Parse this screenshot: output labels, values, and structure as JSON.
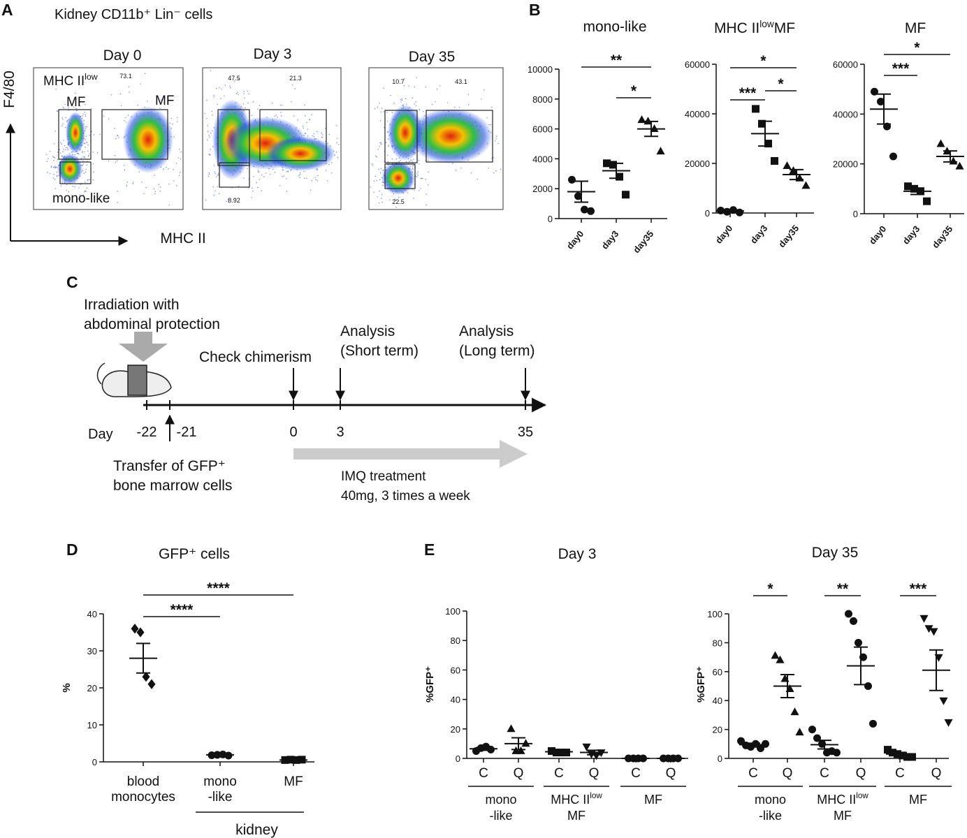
{
  "panel_labels": [
    "A",
    "B",
    "C",
    "D",
    "E"
  ],
  "panel_a": {
    "title": "Kidney CD11b⁺ Lin⁻ cells",
    "y_axis": "F4/80",
    "x_axis": "MHC II",
    "plots": [
      {
        "title": "Day 0",
        "gates": [
          "73.1"
        ]
      },
      {
        "title": "Day 3",
        "gates": [
          "47.5",
          "21.3",
          "8.92"
        ]
      },
      {
        "title": "Day 35",
        "gates": [
          "10.7",
          "43.1",
          "22.5"
        ]
      }
    ],
    "gate_names": {
      "mhc_low": {
        "text": "MHC II",
        "sup": "low"
      },
      "mhc_low_tail": "MF",
      "mf": "MF",
      "mono": "mono-like"
    }
  },
  "panel_c": {
    "irradiation": [
      "Irradiation with",
      "abdominal protection"
    ],
    "chimerism": "Check chimerism",
    "short": [
      "Analysis",
      "(Short term)"
    ],
    "long": [
      "Analysis",
      "(Long term)"
    ],
    "day": "Day",
    "days": [
      "-22",
      "-21",
      "0",
      "3",
      "35"
    ],
    "transfer": [
      "Transfer of GFP⁺",
      "bone marrow cells"
    ],
    "treatment": [
      "IMQ treatment",
      "40mg, 3 times a week"
    ]
  },
  "chart_data": [
    {
      "type": "dot",
      "title": "mono-like",
      "categories": [
        "day0",
        "day3",
        "day35"
      ],
      "markers": [
        "circle",
        "square",
        "triangle"
      ],
      "values": [
        [
          2600,
          1500,
          600,
          500
        ],
        [
          3700,
          3600,
          2800,
          1600
        ],
        [
          6600,
          6500,
          6000,
          4500
        ]
      ],
      "means": [
        1800,
        3200,
        6000
      ],
      "errors": [
        700,
        500,
        500
      ],
      "ylim": [
        0,
        10000
      ],
      "yticks": [
        0,
        2000,
        4000,
        6000,
        8000,
        10000
      ],
      "significance": [
        {
          "from": 0,
          "to": 2,
          "label": "**"
        },
        {
          "from": 1,
          "to": 2,
          "label": "*"
        }
      ]
    },
    {
      "type": "dot",
      "title": {
        "text": "MHC II",
        "sup": "low",
        "tail": "MF"
      },
      "categories": [
        "day0",
        "day3",
        "day35"
      ],
      "markers": [
        "circle",
        "square",
        "triangle"
      ],
      "values": [
        [
          1000,
          500,
          1200,
          200
        ],
        [
          42000,
          36000,
          28000,
          21000
        ],
        [
          19000,
          17000,
          14000,
          11000
        ]
      ],
      "means": [
        800,
        32000,
        15500
      ],
      "errors": [
        300,
        5000,
        2000
      ],
      "ylim": [
        0,
        60000
      ],
      "yticks": [
        0,
        20000,
        40000,
        60000
      ],
      "significance": [
        {
          "from": 0,
          "to": 2,
          "label": "*"
        },
        {
          "from": 0,
          "to": 1,
          "label": "***"
        },
        {
          "from": 1,
          "to": 2,
          "label": "*"
        }
      ]
    },
    {
      "type": "dot",
      "title": "MF",
      "categories": [
        "day0",
        "day3",
        "day35"
      ],
      "markers": [
        "circle",
        "square",
        "triangle"
      ],
      "values": [
        [
          49000,
          45000,
          35000,
          23000
        ],
        [
          11000,
          10000,
          9000,
          5000
        ],
        [
          28000,
          25000,
          21000,
          19000
        ]
      ],
      "means": [
        42000,
        9000,
        23000
      ],
      "errors": [
        6000,
        1300,
        2200
      ],
      "ylim": [
        0,
        60000
      ],
      "yticks": [
        0,
        20000,
        40000,
        60000
      ],
      "significance": [
        {
          "from": 0,
          "to": 1,
          "label": "***"
        },
        {
          "from": 0,
          "to": 2,
          "label": "*"
        }
      ]
    },
    {
      "type": "dot",
      "title": "GFP⁺ cells",
      "ylabel": "%",
      "categories": [
        [
          "blood",
          "monocytes"
        ],
        [
          "mono",
          "-like"
        ],
        [
          "MF"
        ]
      ],
      "markers": [
        "diamond",
        "circle",
        "square"
      ],
      "values": [
        [
          36,
          35,
          23,
          21
        ],
        [
          1.8,
          1.9,
          2,
          1.7
        ],
        [
          0.5,
          0.6,
          0.5,
          0.6
        ]
      ],
      "means": [
        28,
        1.9,
        0.5
      ],
      "errors": [
        4,
        0.1,
        0.1
      ],
      "ylim": [
        0,
        40
      ],
      "yticks": [
        0,
        10,
        20,
        30,
        40
      ],
      "group": {
        "label": "kidney",
        "from": 1,
        "to": 2
      },
      "significance": [
        {
          "from": 0,
          "to": 2,
          "label": "****"
        },
        {
          "from": 0,
          "to": 1,
          "label": "****"
        }
      ]
    },
    {
      "type": "dot",
      "title": "Day 3",
      "ylabel": "%GFP⁺",
      "categories": [
        "C",
        "Q",
        "C",
        "Q",
        "C",
        "Q"
      ],
      "markers": [
        "circle",
        "triangle",
        "square",
        "triangle-down",
        "circle",
        "circle"
      ],
      "values": [
        [
          5,
          7,
          8,
          6
        ],
        [
          20,
          5,
          5,
          10
        ],
        [
          5,
          4,
          4,
          4
        ],
        [
          8,
          3,
          2,
          4
        ],
        [
          0,
          0,
          0,
          0
        ],
        [
          0,
          0,
          0,
          0
        ]
      ],
      "means": [
        6.5,
        10,
        4.5,
        4,
        0,
        0
      ],
      "errors": [
        1,
        4,
        0.5,
        1.5,
        0,
        0
      ],
      "ylim": [
        0,
        100
      ],
      "yticks": [
        0,
        20,
        40,
        60,
        80,
        100
      ],
      "groups": [
        {
          "label": [
            "mono",
            "-like"
          ],
          "from": 0,
          "to": 1
        },
        {
          "label": [
            {
              "text": "MHC II",
              "sup": "low"
            },
            "MF"
          ],
          "from": 2,
          "to": 3
        },
        {
          "label": [
            "MF"
          ],
          "from": 4,
          "to": 5
        }
      ],
      "significance": []
    },
    {
      "type": "dot",
      "title": "Day 35",
      "ylabel": "%GFP⁺",
      "categories": [
        "C",
        "Q",
        "C",
        "Q",
        "C",
        "Q"
      ],
      "markers": [
        "circle",
        "triangle",
        "circle",
        "circle",
        "square",
        "triangle-down"
      ],
      "values": [
        [
          12,
          9,
          8,
          10,
          7,
          10
        ],
        [
          71,
          68,
          55,
          48,
          32,
          18
        ],
        [
          20,
          14,
          10,
          4,
          5,
          4
        ],
        [
          100,
          95,
          80,
          70,
          50,
          24
        ],
        [
          6,
          4,
          3,
          2,
          1,
          1
        ],
        [
          97,
          90,
          88,
          70,
          40,
          25
        ]
      ],
      "means": [
        9.5,
        50,
        9.5,
        64,
        3,
        61
      ],
      "errors": [
        1,
        8,
        3,
        13,
        1,
        14
      ],
      "ylim": [
        0,
        100
      ],
      "yticks": [
        0,
        20,
        40,
        60,
        80,
        100
      ],
      "groups": [
        {
          "label": [
            "mono",
            "-like"
          ],
          "from": 0,
          "to": 1
        },
        {
          "label": [
            {
              "text": "MHC II",
              "sup": "low"
            },
            "MF"
          ],
          "from": 2,
          "to": 3
        },
        {
          "label": [
            "MF"
          ],
          "from": 4,
          "to": 5
        }
      ],
      "significance": [
        {
          "from": 0,
          "to": 1,
          "label": "*"
        },
        {
          "from": 2,
          "to": 3,
          "label": "**"
        },
        {
          "from": 4,
          "to": 5,
          "label": "***"
        }
      ]
    }
  ]
}
